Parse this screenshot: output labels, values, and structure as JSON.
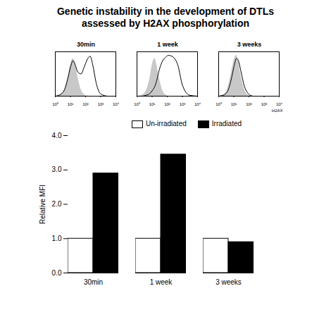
{
  "title": [
    "Genetic instability in the development of DTLs",
    "assessed by H2AX phosphorylation"
  ],
  "chart_data": [
    {
      "type": "area",
      "title": "30min",
      "log": "x",
      "tick_labels": "x",
      "x": [
        1,
        2,
        4,
        7,
        10,
        15,
        20,
        30,
        50,
        80,
        120,
        200,
        300,
        500,
        1000,
        3000,
        10000
      ],
      "series": [
        {
          "type": "area",
          "color": "#c8c8c8",
          "values": [
            0,
            3,
            15,
            45,
            70,
            85,
            75,
            45,
            15,
            4,
            1,
            0,
            0,
            0,
            0,
            0,
            0
          ]
        },
        {
          "type": "line",
          "color": "#000000",
          "values": [
            0,
            3,
            14,
            42,
            65,
            80,
            72,
            55,
            50,
            65,
            80,
            90,
            70,
            30,
            5,
            0,
            0
          ]
        }
      ],
      "xlim": [
        1,
        10000
      ],
      "xticks": [
        {
          "value": 1,
          "label": "10⁰"
        },
        {
          "value": 10,
          "label": "10¹"
        },
        {
          "value": 100,
          "label": "10²"
        },
        {
          "value": 1000,
          "label": "10³"
        },
        {
          "value": 10000,
          "label": "10⁴"
        }
      ],
      "ylim": [
        0,
        100
      ]
    },
    {
      "type": "area",
      "title": "1 week",
      "log": "x",
      "tick_labels": "x",
      "x": [
        1,
        2,
        4,
        7,
        10,
        15,
        20,
        30,
        50,
        80,
        120,
        200,
        300,
        500,
        1000,
        3000,
        10000
      ],
      "series": [
        {
          "type": "area",
          "color": "#c8c8c8",
          "values": [
            0,
            2,
            12,
            40,
            70,
            85,
            72,
            40,
            12,
            3,
            0,
            0,
            0,
            0,
            0,
            0,
            0
          ]
        },
        {
          "type": "line",
          "color": "#000000",
          "values": [
            0,
            0,
            2,
            6,
            12,
            22,
            35,
            60,
            80,
            88,
            92,
            90,
            85,
            70,
            25,
            2,
            0
          ]
        }
      ],
      "xlim": [
        1,
        10000
      ],
      "xticks": [
        {
          "value": 1,
          "label": "10⁰"
        },
        {
          "value": 10,
          "label": "10¹"
        },
        {
          "value": 100,
          "label": "10²"
        },
        {
          "value": 1000,
          "label": "10³"
        },
        {
          "value": 10000,
          "label": "10⁴"
        }
      ],
      "ylim": [
        0,
        100
      ]
    },
    {
      "type": "area",
      "title": "3 weeks",
      "log": "x",
      "tick_labels": "x",
      "xlabel": "H2AX",
      "x": [
        1,
        2,
        4,
        7,
        10,
        15,
        20,
        30,
        50,
        80,
        120,
        200,
        300,
        500,
        1000,
        3000,
        10000
      ],
      "series": [
        {
          "type": "area",
          "color": "#c8c8c8",
          "values": [
            0,
            3,
            18,
            55,
            80,
            92,
            78,
            45,
            15,
            4,
            1,
            0,
            0,
            0,
            0,
            0,
            0
          ]
        },
        {
          "type": "line",
          "color": "#000000",
          "values": [
            0,
            2,
            12,
            40,
            65,
            85,
            80,
            55,
            22,
            8,
            2,
            0,
            0,
            0,
            0,
            0,
            0
          ]
        }
      ],
      "xlim": [
        1,
        10000
      ],
      "xticks": [
        {
          "value": 1,
          "label": "10⁰"
        },
        {
          "value": 10,
          "label": "10¹"
        },
        {
          "value": 100,
          "label": "10²"
        },
        {
          "value": 1000,
          "label": "10³"
        },
        {
          "value": 10000,
          "label": "10⁴"
        }
      ],
      "ylim": [
        0,
        100
      ]
    },
    {
      "type": "bar",
      "ylabel": "Relative MFI",
      "legend": "top",
      "categories": [
        "30min",
        "1 week",
        "3 weeks"
      ],
      "series": [
        {
          "name": "Un-irradiated",
          "color": "#ffffff",
          "values": [
            1,
            1,
            1
          ]
        },
        {
          "name": "Irradiated",
          "color": "#000000",
          "values": [
            2.9,
            3.45,
            0.9
          ]
        }
      ],
      "ylim": [
        0,
        4
      ],
      "yticks": [
        0,
        1,
        2,
        3,
        4
      ]
    }
  ]
}
